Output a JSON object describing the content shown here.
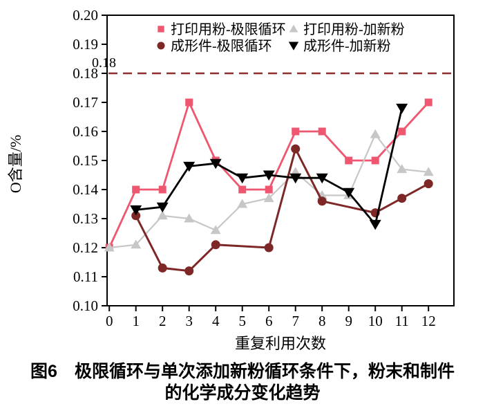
{
  "figure": {
    "caption": {
      "line1": "图6　极限循环与单次添加新粉循环条件下，粉末和制件",
      "line2": "的化学成分变化趋势"
    }
  },
  "chart_data": {
    "type": "line",
    "title": "",
    "xlabel": "重复利用次数",
    "ylabel": "O含量/%",
    "xlim": [
      -0.1,
      13
    ],
    "ylim": [
      0.1,
      0.2
    ],
    "x_ticks": [
      "0",
      "1",
      "2",
      "3",
      "4",
      "5",
      "6",
      "7",
      "8",
      "9",
      "10",
      "11",
      "12"
    ],
    "y_ticks": [
      "0.10",
      "0.11",
      "0.12",
      "0.13",
      "0.14",
      "0.15",
      "0.16",
      "0.17",
      "0.18",
      "0.19",
      "0.20"
    ],
    "grid": false,
    "legend_position": "top-inside",
    "reference_line": {
      "value": 0.18,
      "label": "0.18",
      "color": "#8e2f2f",
      "style": "dashed"
    },
    "series": [
      {
        "name": "打印用粉-极限循环",
        "marker": "square",
        "color": "#ef5670",
        "x": [
          0,
          1,
          2,
          3,
          4,
          5,
          6,
          7,
          8,
          9,
          10,
          11,
          12
        ],
        "values": [
          0.12,
          0.14,
          0.14,
          0.17,
          0.15,
          0.14,
          0.14,
          0.16,
          0.16,
          0.15,
          0.15,
          0.16,
          0.17
        ]
      },
      {
        "name": "打印用粉-加新粉",
        "marker": "triangle-up",
        "color": "#c7c7c7",
        "x": [
          0,
          1,
          2,
          3,
          4,
          5,
          6,
          7,
          8,
          9,
          10,
          11,
          12
        ],
        "values": [
          0.12,
          0.121,
          0.131,
          0.13,
          0.126,
          0.135,
          0.137,
          0.146,
          0.138,
          0.138,
          0.159,
          0.147,
          0.146
        ]
      },
      {
        "name": "成形件-极限循环",
        "marker": "circle",
        "color": "#7e2727",
        "x": [
          1,
          2,
          3,
          4,
          6,
          7,
          8,
          10,
          11,
          12
        ],
        "values": [
          0.131,
          0.113,
          0.112,
          0.121,
          0.12,
          0.154,
          0.136,
          0.132,
          0.137,
          0.142
        ]
      },
      {
        "name": "成形件-加新粉",
        "marker": "triangle-down",
        "color": "#000000",
        "x": [
          1,
          2,
          3,
          4,
          5,
          6,
          7,
          8,
          9,
          10,
          11
        ],
        "values": [
          0.133,
          0.134,
          0.148,
          0.149,
          0.144,
          0.145,
          0.144,
          0.144,
          0.139,
          0.128,
          0.168
        ]
      }
    ]
  }
}
